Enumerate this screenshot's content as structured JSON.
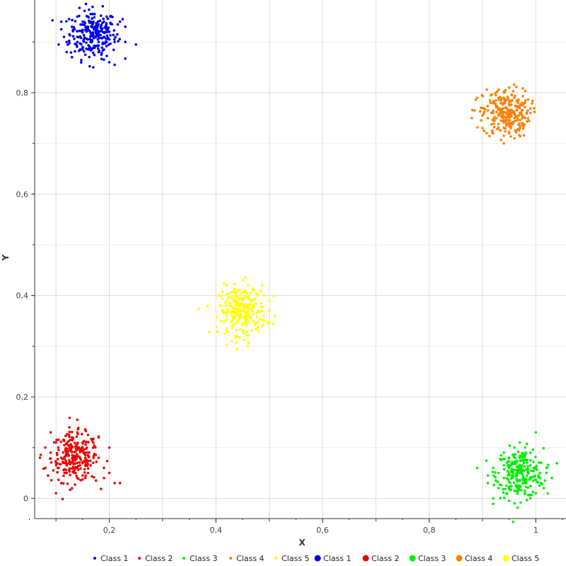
{
  "chart_data": {
    "type": "scatter",
    "xlabel": "X",
    "ylabel": "Y",
    "xlim": [
      0.06,
      1.05
    ],
    "ylim": [
      -0.04,
      0.98
    ],
    "grid": true,
    "legend_position": "bottom",
    "xticks": [
      {
        "value": 0.2,
        "label": "0,2"
      },
      {
        "value": 0.4,
        "label": "0,4"
      },
      {
        "value": 0.6,
        "label": "0,6"
      },
      {
        "value": 0.8,
        "label": "0,8"
      },
      {
        "value": 1.0,
        "label": "1"
      }
    ],
    "yticks": [
      {
        "value": 0.0,
        "label": "0"
      },
      {
        "value": 0.2,
        "label": "0,2"
      },
      {
        "value": 0.4,
        "label": "0,4"
      },
      {
        "value": 0.6,
        "label": "0,6"
      },
      {
        "value": 0.8,
        "label": "0,8"
      }
    ],
    "legend": [
      {
        "label": "Class 1",
        "color": "#0000ee",
        "marker": "small"
      },
      {
        "label": "Class 2",
        "color": "#ee0000",
        "marker": "small"
      },
      {
        "label": "Class 3",
        "color": "#00ee00",
        "marker": "small"
      },
      {
        "label": "Class 4",
        "color": "#ff8000",
        "marker": "small"
      },
      {
        "label": "Class 5",
        "color": "#ffff00",
        "marker": "small"
      },
      {
        "label": "Class 1",
        "color": "#0000ee",
        "marker": "large"
      },
      {
        "label": "Class 2",
        "color": "#ee0000",
        "marker": "large"
      },
      {
        "label": "Class 3",
        "color": "#00ee00",
        "marker": "large"
      },
      {
        "label": "Class 4",
        "color": "#ff8000",
        "marker": "large"
      },
      {
        "label": "Class 5",
        "color": "#ffff00",
        "marker": "large"
      }
    ],
    "series": [
      {
        "name": "Class 1",
        "color": "#0000ee",
        "center": [
          0.17,
          0.915
        ],
        "points": [
          [
            0.17,
            0.915
          ],
          [
            0.15,
            0.92
          ],
          [
            0.19,
            0.91
          ],
          [
            0.16,
            0.93
          ],
          [
            0.18,
            0.9
          ],
          [
            0.14,
            0.91
          ],
          [
            0.2,
            0.92
          ],
          [
            0.13,
            0.93
          ],
          [
            0.21,
            0.9
          ],
          [
            0.12,
            0.9
          ],
          [
            0.17,
            0.94
          ],
          [
            0.15,
            0.89
          ],
          [
            0.19,
            0.94
          ],
          [
            0.16,
            0.95
          ],
          [
            0.22,
            0.94
          ],
          [
            0.23,
            0.9
          ],
          [
            0.11,
            0.94
          ],
          [
            0.12,
            0.88
          ],
          [
            0.13,
            0.87
          ],
          [
            0.18,
            0.88
          ],
          [
            0.2,
            0.86
          ],
          [
            0.17,
            0.85
          ],
          [
            0.21,
            0.855
          ],
          [
            0.25,
            0.895
          ],
          [
            0.105,
            0.895
          ],
          [
            0.115,
            0.91
          ],
          [
            0.14,
            0.95
          ],
          [
            0.165,
            0.955
          ],
          [
            0.195,
            0.95
          ],
          [
            0.225,
            0.945
          ],
          [
            0.155,
            0.875
          ],
          [
            0.185,
            0.875
          ],
          [
            0.14,
            0.9
          ],
          [
            0.2,
            0.905
          ],
          [
            0.16,
            0.905
          ],
          [
            0.175,
            0.925
          ],
          [
            0.135,
            0.925
          ],
          [
            0.205,
            0.935
          ],
          [
            0.125,
            0.915
          ],
          [
            0.215,
            0.915
          ],
          [
            0.15,
            0.94
          ],
          [
            0.19,
            0.885
          ],
          [
            0.145,
            0.885
          ],
          [
            0.23,
            0.93
          ],
          [
            0.11,
            0.925
          ],
          [
            0.18,
            0.935
          ],
          [
            0.165,
            0.9
          ],
          [
            0.195,
            0.9
          ]
        ]
      },
      {
        "name": "Class 2",
        "color": "#ee0000",
        "center": [
          0.135,
          0.08
        ],
        "points": [
          [
            0.135,
            0.08
          ],
          [
            0.12,
            0.09
          ],
          [
            0.15,
            0.07
          ],
          [
            0.13,
            0.1
          ],
          [
            0.14,
            0.06
          ],
          [
            0.11,
            0.08
          ],
          [
            0.16,
            0.09
          ],
          [
            0.1,
            0.07
          ],
          [
            0.17,
            0.07
          ],
          [
            0.09,
            0.09
          ],
          [
            0.13,
            0.12
          ],
          [
            0.15,
            0.11
          ],
          [
            0.12,
            0.05
          ],
          [
            0.16,
            0.05
          ],
          [
            0.18,
            0.08
          ],
          [
            0.08,
            0.06
          ],
          [
            0.1,
            0.11
          ],
          [
            0.14,
            0.13
          ],
          [
            0.125,
            0.14
          ],
          [
            0.14,
            0.155
          ],
          [
            0.2,
            0.05
          ],
          [
            0.21,
            0.03
          ],
          [
            0.22,
            0.03
          ],
          [
            0.19,
            0.04
          ],
          [
            0.11,
            0.03
          ],
          [
            0.1,
            0.01
          ],
          [
            0.13,
            0.02
          ],
          [
            0.07,
            0.08
          ],
          [
            0.08,
            0.1
          ],
          [
            0.09,
            0.13
          ],
          [
            0.18,
            0.12
          ],
          [
            0.17,
            0.11
          ],
          [
            0.2,
            0.1
          ],
          [
            0.19,
            0.06
          ],
          [
            0.12,
            0.065
          ],
          [
            0.145,
            0.095
          ],
          [
            0.155,
            0.085
          ],
          [
            0.105,
            0.095
          ],
          [
            0.165,
            0.065
          ],
          [
            0.115,
            0.115
          ],
          [
            0.085,
            0.045
          ],
          [
            0.175,
            0.035
          ],
          [
            0.15,
            0.045
          ],
          [
            0.095,
            0.055
          ],
          [
            0.16,
            0.125
          ],
          [
            0.105,
            0.06
          ],
          [
            0.125,
            0.075
          ],
          [
            0.145,
            0.065
          ]
        ]
      },
      {
        "name": "Class 3",
        "color": "#00ee00",
        "center": [
          0.97,
          0.05
        ],
        "points": [
          [
            0.97,
            0.05
          ],
          [
            0.95,
            0.06
          ],
          [
            0.99,
            0.04
          ],
          [
            0.96,
            0.07
          ],
          [
            0.98,
            0.03
          ],
          [
            0.94,
            0.04
          ],
          [
            1.0,
            0.06
          ],
          [
            0.93,
            0.05
          ],
          [
            1.01,
            0.03
          ],
          [
            0.92,
            0.06
          ],
          [
            0.97,
            0.08
          ],
          [
            0.95,
            0.02
          ],
          [
            0.99,
            0.09
          ],
          [
            0.96,
            0.1
          ],
          [
            0.98,
            0.01
          ],
          [
            0.94,
            0.09
          ],
          [
            1.0,
            0.01
          ],
          [
            0.93,
            0.02
          ],
          [
            0.92,
            0.0
          ],
          [
            0.96,
            -0.01
          ],
          [
            1.0,
            0.13
          ],
          [
            0.97,
            0.11
          ],
          [
            0.98,
            0.1
          ],
          [
            0.89,
            0.06
          ],
          [
            1.02,
            0.05
          ],
          [
            1.03,
            0.04
          ],
          [
            0.91,
            0.03
          ],
          [
            0.95,
            -0.005
          ],
          [
            0.99,
            0.0
          ],
          [
            1.01,
            0.07
          ],
          [
            0.94,
            0.065
          ],
          [
            0.965,
            0.035
          ],
          [
            0.985,
            0.055
          ],
          [
            0.955,
            0.045
          ],
          [
            0.975,
            0.065
          ],
          [
            0.945,
            0.025
          ],
          [
            1.005,
            0.045
          ],
          [
            0.935,
            0.075
          ],
          [
            0.99,
            0.075
          ],
          [
            0.96,
            0.015
          ],
          [
            0.925,
            0.035
          ],
          [
            1.015,
            0.02
          ],
          [
            0.98,
            0.085
          ],
          [
            0.95,
            0.08
          ],
          [
            0.97,
            0.025
          ],
          [
            0.91,
            0.045
          ],
          [
            1.02,
            0.06
          ],
          [
            0.965,
            0.055
          ]
        ]
      },
      {
        "name": "Class 4",
        "color": "#ff8000",
        "center": [
          0.945,
          0.76
        ],
        "points": [
          [
            0.945,
            0.76
          ],
          [
            0.93,
            0.77
          ],
          [
            0.96,
            0.75
          ],
          [
            0.94,
            0.78
          ],
          [
            0.95,
            0.74
          ],
          [
            0.92,
            0.76
          ],
          [
            0.97,
            0.77
          ],
          [
            0.91,
            0.75
          ],
          [
            0.98,
            0.75
          ],
          [
            0.9,
            0.77
          ],
          [
            0.94,
            0.8
          ],
          [
            0.96,
            0.79
          ],
          [
            0.93,
            0.73
          ],
          [
            0.95,
            0.72
          ],
          [
            0.97,
            0.73
          ],
          [
            0.89,
            0.79
          ],
          [
            0.88,
            0.75
          ],
          [
            0.9,
            0.73
          ],
          [
            0.92,
            0.72
          ],
          [
            0.94,
            0.7
          ],
          [
            0.96,
            0.71
          ],
          [
            0.98,
            0.78
          ],
          [
            0.99,
            0.76
          ],
          [
            0.95,
            0.81
          ],
          [
            0.925,
            0.795
          ],
          [
            0.935,
            0.745
          ],
          [
            0.955,
            0.765
          ],
          [
            0.965,
            0.785
          ],
          [
            0.915,
            0.78
          ],
          [
            0.975,
            0.74
          ],
          [
            0.885,
            0.765
          ],
          [
            0.94,
            0.715
          ],
          [
            0.935,
            0.765
          ],
          [
            0.95,
            0.775
          ],
          [
            0.96,
            0.76
          ],
          [
            0.93,
            0.755
          ],
          [
            0.91,
            0.765
          ],
          [
            0.97,
            0.76
          ],
          [
            0.945,
            0.735
          ],
          [
            0.955,
            0.795
          ],
          [
            0.92,
            0.745
          ],
          [
            0.985,
            0.765
          ],
          [
            0.9,
            0.755
          ],
          [
            0.95,
            0.755
          ],
          [
            0.94,
            0.79
          ],
          [
            0.965,
            0.745
          ],
          [
            0.925,
            0.775
          ],
          [
            0.975,
            0.775
          ]
        ]
      },
      {
        "name": "Class 5",
        "color": "#ffff00",
        "center": [
          0.45,
          0.37
        ],
        "points": [
          [
            0.45,
            0.37
          ],
          [
            0.44,
            0.38
          ],
          [
            0.46,
            0.36
          ],
          [
            0.43,
            0.37
          ],
          [
            0.47,
            0.38
          ],
          [
            0.45,
            0.39
          ],
          [
            0.44,
            0.35
          ],
          [
            0.46,
            0.4
          ],
          [
            0.42,
            0.36
          ],
          [
            0.48,
            0.37
          ],
          [
            0.43,
            0.34
          ],
          [
            0.47,
            0.35
          ],
          [
            0.44,
            0.41
          ],
          [
            0.46,
            0.42
          ],
          [
            0.45,
            0.43
          ],
          [
            0.42,
            0.39
          ],
          [
            0.49,
            0.4
          ],
          [
            0.5,
            0.37
          ],
          [
            0.51,
            0.36
          ],
          [
            0.41,
            0.35
          ],
          [
            0.41,
            0.38
          ],
          [
            0.44,
            0.32
          ],
          [
            0.46,
            0.3
          ],
          [
            0.45,
            0.33
          ],
          [
            0.43,
            0.31
          ],
          [
            0.48,
            0.33
          ],
          [
            0.49,
            0.35
          ],
          [
            0.42,
            0.42
          ],
          [
            0.455,
            0.435
          ],
          [
            0.435,
            0.355
          ],
          [
            0.465,
            0.375
          ],
          [
            0.445,
            0.395
          ],
          [
            0.475,
            0.365
          ],
          [
            0.425,
            0.385
          ],
          [
            0.455,
            0.345
          ],
          [
            0.485,
            0.385
          ],
          [
            0.415,
            0.365
          ],
          [
            0.465,
            0.405
          ],
          [
            0.435,
            0.405
          ],
          [
            0.475,
            0.345
          ],
          [
            0.445,
            0.355
          ],
          [
            0.455,
            0.375
          ],
          [
            0.465,
            0.355
          ],
          [
            0.435,
            0.375
          ],
          [
            0.5,
            0.39
          ],
          [
            0.42,
            0.33
          ],
          [
            0.47,
            0.41
          ],
          [
            0.44,
            0.36
          ]
        ]
      }
    ]
  }
}
